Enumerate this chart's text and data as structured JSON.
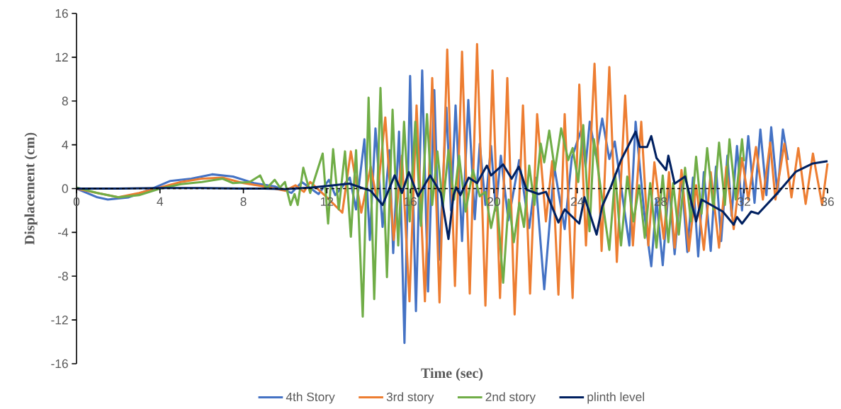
{
  "chart_data": {
    "type": "line",
    "xlabel": "Time (sec)",
    "ylabel": "Displacement (cm)",
    "xlim": [
      0,
      36
    ],
    "ylim": [
      -16,
      16
    ],
    "xticks": [
      0,
      4,
      8,
      12,
      16,
      20,
      24,
      28,
      32,
      36
    ],
    "yticks": [
      -16,
      -12,
      -8,
      -4,
      0,
      4,
      8,
      12,
      16
    ],
    "legend": "bottom",
    "series": [
      {
        "name": "4th Story",
        "color": "#4472c4",
        "x": [
          0,
          1,
          1.5,
          2.5,
          3.5,
          4.5,
          5.5,
          6.5,
          7.5,
          8.5,
          9.5,
          10.3,
          10.8,
          11.6,
          12.1,
          12.4,
          13.1,
          13.4,
          13.8,
          14.06,
          14.33,
          14.67,
          15.0,
          15.18,
          15.46,
          15.72,
          15.99,
          16.27,
          16.57,
          16.85,
          17.15,
          17.39,
          17.73,
          17.95,
          18.17,
          18.48,
          18.78,
          19.09,
          19.33,
          19.6,
          19.87,
          20.1,
          20.34,
          20.7,
          21.22,
          21.7,
          22.0,
          22.42,
          22.9,
          23.4,
          23.74,
          24.2,
          24.4,
          24.6,
          24.9,
          25.2,
          25.54,
          25.8,
          26.5,
          26.8,
          27.2,
          27.55,
          27.8,
          28.1,
          28.4,
          28.67,
          29.0,
          29.28,
          29.55,
          29.8,
          30.07,
          30.4,
          30.65,
          30.9,
          31.2,
          31.4,
          31.66,
          31.9,
          32.2,
          32.5,
          32.78,
          33.07,
          33.3,
          33.6,
          33.86,
          34.1
        ],
        "values": [
          0,
          -0.8,
          -1.0,
          -0.8,
          -0.1,
          0.7,
          0.9,
          1.3,
          1.1,
          0.5,
          0.2,
          -0.4,
          0.6,
          -0.5,
          0.8,
          -0.6,
          1.0,
          -1.9,
          4.5,
          -4.7,
          5.5,
          -3.5,
          3.5,
          -5.9,
          5.2,
          -14.1,
          10.3,
          -11.2,
          10.8,
          -9.4,
          9.0,
          -6.5,
          7.4,
          -2.0,
          7.6,
          -4.8,
          8.1,
          -2.8,
          4.1,
          -1.5,
          3.9,
          -2.0,
          3.0,
          -2.9,
          2.6,
          -3.6,
          1.0,
          -9.2,
          2.0,
          -3.7,
          2.8,
          5.4,
          2.0,
          6.1,
          3.0,
          6.4,
          2.7,
          4.3,
          -5.2,
          6.1,
          -2.0,
          -7.1,
          -1.0,
          -7.0,
          0.5,
          -6.0,
          1.0,
          -5.8,
          1.0,
          -6.2,
          1.5,
          -5.7,
          2.0,
          -4.8,
          3.0,
          -2.5,
          3.9,
          -2.0,
          4.8,
          -1.3,
          5.4,
          -0.6,
          5.6,
          -0.5,
          5.4,
          2.6
        ]
      },
      {
        "name": "3rd story",
        "color": "#ed7d31",
        "x": [
          0,
          1,
          2,
          3,
          4,
          5,
          6,
          7,
          8,
          9,
          10,
          10.5,
          10.9,
          11.2,
          12.0,
          12.74,
          13.15,
          13.65,
          14.1,
          14.4,
          14.8,
          15.2,
          15.6,
          15.96,
          16.3,
          16.7,
          17.05,
          17.4,
          17.77,
          18.14,
          18.48,
          18.85,
          19.2,
          19.6,
          19.94,
          20.3,
          20.65,
          21.0,
          21.4,
          21.74,
          22.08,
          22.5,
          22.8,
          23.1,
          23.4,
          23.78,
          24.1,
          24.42,
          24.83,
          25.17,
          25.54,
          25.9,
          26.3,
          26.67,
          27.07,
          27.41,
          27.7,
          28.15,
          28.4,
          28.67,
          29.0,
          29.35,
          29.7,
          30.07,
          30.4,
          30.8,
          31.15,
          31.5,
          31.9,
          32.2,
          32.57,
          32.9,
          33.25,
          33.5,
          33.93,
          34.27,
          34.6,
          34.95,
          35.3,
          35.74,
          36
        ],
        "values": [
          0,
          -0.4,
          -0.8,
          -0.4,
          0.1,
          0.6,
          0.9,
          1.0,
          0.5,
          0.2,
          -0.2,
          0.3,
          -0.3,
          0.6,
          -0.8,
          -2.2,
          3.4,
          -2.2,
          2.0,
          -1.0,
          6.5,
          -4.7,
          3.0,
          -10.3,
          7.6,
          -10.3,
          10.1,
          -10.4,
          12.7,
          -8.9,
          12.5,
          -9.6,
          13.2,
          -10.7,
          10.8,
          -10.0,
          10.1,
          -11.5,
          7.6,
          -9.6,
          6.8,
          -3.0,
          2.5,
          -9.7,
          6.8,
          -10.0,
          9.5,
          -5.2,
          11.4,
          -5.7,
          11.1,
          -6.7,
          8.5,
          -5.2,
          6.1,
          -5.2,
          2.4,
          -4.6,
          1.5,
          -5.4,
          1.7,
          -5.7,
          0.3,
          -5.6,
          1.5,
          -5.4,
          2.0,
          -3.7,
          2.8,
          -1.0,
          3.8,
          -1.0,
          4.2,
          -1.0,
          4.1,
          -0.8,
          3.7,
          -1.4,
          3.2,
          -1.5,
          2.3
        ]
      },
      {
        "name": "2nd story",
        "color": "#70ad47",
        "x": [
          0,
          1,
          2,
          3,
          4,
          5,
          6,
          7,
          7.5,
          8.3,
          8.8,
          9.1,
          9.5,
          9.75,
          9.99,
          10.26,
          10.45,
          10.6,
          10.87,
          11.2,
          11.8,
          12.06,
          12.3,
          12.57,
          12.87,
          13.15,
          13.4,
          13.72,
          14.0,
          14.27,
          14.57,
          14.88,
          15.15,
          15.42,
          15.7,
          15.97,
          16.24,
          16.51,
          16.8,
          17.05,
          17.3,
          17.56,
          17.83,
          18.1,
          18.34,
          18.65,
          19.0,
          19.33,
          19.6,
          19.87,
          20.15,
          20.45,
          20.72,
          20.96,
          21.23,
          21.45,
          21.7,
          21.95,
          22.25,
          22.42,
          22.66,
          22.93,
          23.23,
          23.57,
          23.78,
          24.05,
          24.29,
          24.59,
          24.8,
          25.2,
          25.54,
          25.82,
          26.1,
          26.4,
          26.7,
          26.97,
          27.24,
          27.5,
          27.8,
          28.1,
          28.37,
          28.6,
          28.87,
          29.17,
          29.45,
          29.7,
          29.96,
          30.23,
          30.53,
          30.8,
          31.08,
          31.3,
          31.6,
          31.9,
          32.0
        ],
        "values": [
          0.1,
          -0.4,
          -0.8,
          -0.6,
          0,
          0.4,
          0.6,
          0.9,
          0.5,
          0.6,
          1.2,
          0,
          0.8,
          0.1,
          0.6,
          -1.5,
          -0.5,
          -1.5,
          1.9,
          -0.4,
          3.2,
          -3.2,
          3.6,
          -1.9,
          3.4,
          -4.4,
          3.5,
          -11.7,
          8.3,
          -10.1,
          9.2,
          -8.1,
          7.2,
          -5.2,
          6.1,
          -3.0,
          6.1,
          -3.4,
          6.8,
          -1.5,
          3.4,
          -1.6,
          3.5,
          -1.0,
          3.0,
          -2.1,
          1.7,
          -0.7,
          -0.3,
          -3.6,
          -1.0,
          -8.6,
          -1.0,
          -4.9,
          -1.3,
          -3.5,
          2.1,
          -1.5,
          4.1,
          2.4,
          5.3,
          1.7,
          5.5,
          2.6,
          3.7,
          0.6,
          5.8,
          -3.9,
          4.5,
          -1.0,
          -5.6,
          1.3,
          -5.2,
          1.1,
          -3.0,
          0.3,
          -4.5,
          0.5,
          -5.4,
          1.2,
          -4.9,
          0.5,
          -4.2,
          1.9,
          -3.0,
          2.9,
          -2.3,
          3.7,
          -1.9,
          4.2,
          -1.5,
          4.5,
          -1.0,
          4.5,
          2.5
        ]
      },
      {
        "name": "plinth level",
        "color": "#002060",
        "x": [
          0,
          2,
          4,
          6,
          8,
          9,
          10,
          11.28,
          13.08,
          14.1,
          14.67,
          15.25,
          15.6,
          15.93,
          16.37,
          16.95,
          17.46,
          17.83,
          18.07,
          18.2,
          18.4,
          18.8,
          19.2,
          19.67,
          19.87,
          20.45,
          20.86,
          21.2,
          21.57,
          22.15,
          22.5,
          23.1,
          23.4,
          24.1,
          24.35,
          24.93,
          25.2,
          25.6,
          26.1,
          26.8,
          27.0,
          27.35,
          27.55,
          27.8,
          28.26,
          28.37,
          28.67,
          29.17,
          29.7,
          29.96,
          30.98,
          31.5,
          31.66,
          31.9,
          32.34,
          32.68,
          33.7,
          34.48,
          35.3,
          36
        ],
        "values": [
          0,
          0,
          0.05,
          0.05,
          0,
          0,
          -0.05,
          0.1,
          0.45,
          -0.2,
          -1.5,
          1.2,
          -0.4,
          1.5,
          -0.7,
          1.2,
          -0.4,
          -4.6,
          -0.6,
          0.1,
          -0.6,
          1.0,
          0.5,
          2.1,
          1.2,
          2.2,
          0.9,
          2.0,
          -0.1,
          -0.5,
          -0.3,
          -3.1,
          -1.9,
          -3.2,
          -0.8,
          -4.2,
          -1.6,
          0.1,
          2.6,
          5.2,
          3.8,
          3.8,
          4.8,
          2.8,
          1.7,
          3.0,
          0.45,
          1.1,
          -3.0,
          -1.0,
          -2.1,
          -3.3,
          -2.6,
          -3.2,
          -2.1,
          -2.3,
          -0.2,
          1.55,
          2.3,
          2.5
        ]
      }
    ]
  }
}
